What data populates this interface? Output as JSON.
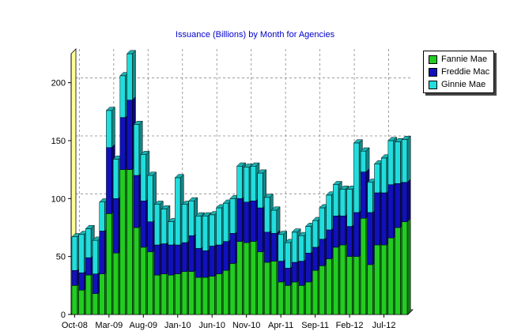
{
  "chart_data": {
    "type": "bar",
    "stacked": true,
    "title": "Issuance (Billions) by Month for Agencies",
    "xlabel": "",
    "ylabel": "",
    "ylim": [
      0,
      225
    ],
    "yticks": [
      0,
      50,
      100,
      150,
      200
    ],
    "grid": true,
    "legend_position": "top-right",
    "x_tick_labels": [
      "Oct-08",
      "Mar-09",
      "Aug-09",
      "Jan-10",
      "Jun-10",
      "Nov-10",
      "Apr-11",
      "Sep-11",
      "Feb-12",
      "Jul-12"
    ],
    "x_tick_indices": [
      0,
      5,
      10,
      15,
      20,
      25,
      30,
      35,
      40,
      45
    ],
    "categories": [
      "Oct-08",
      "Nov-08",
      "Dec-08",
      "Jan-09",
      "Feb-09",
      "Mar-09",
      "Apr-09",
      "May-09",
      "Jun-09",
      "Jul-09",
      "Aug-09",
      "Sep-09",
      "Oct-09",
      "Nov-09",
      "Dec-09",
      "Jan-10",
      "Feb-10",
      "Mar-10",
      "Apr-10",
      "May-10",
      "Jun-10",
      "Jul-10",
      "Aug-10",
      "Sep-10",
      "Oct-10",
      "Nov-10",
      "Dec-10",
      "Jan-11",
      "Feb-11",
      "Mar-11",
      "Apr-11",
      "May-11",
      "Jun-11",
      "Jul-11",
      "Aug-11",
      "Sep-11",
      "Oct-11",
      "Nov-11",
      "Dec-11",
      "Jan-12",
      "Feb-12",
      "Mar-12",
      "Apr-12",
      "May-12",
      "Jun-12",
      "Jul-12",
      "Aug-12",
      "Sep-12",
      "Oct-12"
    ],
    "series": [
      {
        "name": "Fannie Mae",
        "color": "#22cc22",
        "values": [
          25,
          21,
          34,
          18,
          35,
          87,
          53,
          125,
          125,
          75,
          58,
          54,
          34,
          35,
          34,
          35,
          37,
          37,
          32,
          32,
          33,
          35,
          38,
          44,
          63,
          62,
          63,
          54,
          45,
          46,
          28,
          25,
          28,
          25,
          28,
          38,
          42,
          48,
          58,
          60,
          50,
          50,
          83,
          43,
          60,
          60,
          66,
          75,
          80
        ]
      },
      {
        "name": "Freddie Mac",
        "color": "#1111bb",
        "values": [
          13,
          15,
          15,
          17,
          37,
          57,
          47,
          45,
          60,
          45,
          40,
          26,
          26,
          26,
          26,
          25,
          25,
          31,
          25,
          23,
          26,
          25,
          25,
          26,
          37,
          35,
          35,
          38,
          26,
          24,
          18,
          15,
          17,
          21,
          25,
          20,
          23,
          25,
          27,
          25,
          26,
          38,
          40,
          45,
          45,
          45,
          46,
          38,
          34
        ]
      },
      {
        "name": "Ginnie Mae",
        "color": "#22dddd",
        "values": [
          29,
          33,
          25,
          29,
          25,
          32,
          34,
          36,
          40,
          44,
          40,
          40,
          35,
          30,
          20,
          58,
          33,
          30,
          28,
          30,
          27,
          32,
          33,
          30,
          28,
          30,
          30,
          30,
          30,
          20,
          23,
          22,
          26,
          22,
          23,
          23,
          27,
          30,
          27,
          23,
          32,
          60,
          18,
          26,
          25,
          30,
          38,
          36,
          37
        ]
      }
    ]
  }
}
